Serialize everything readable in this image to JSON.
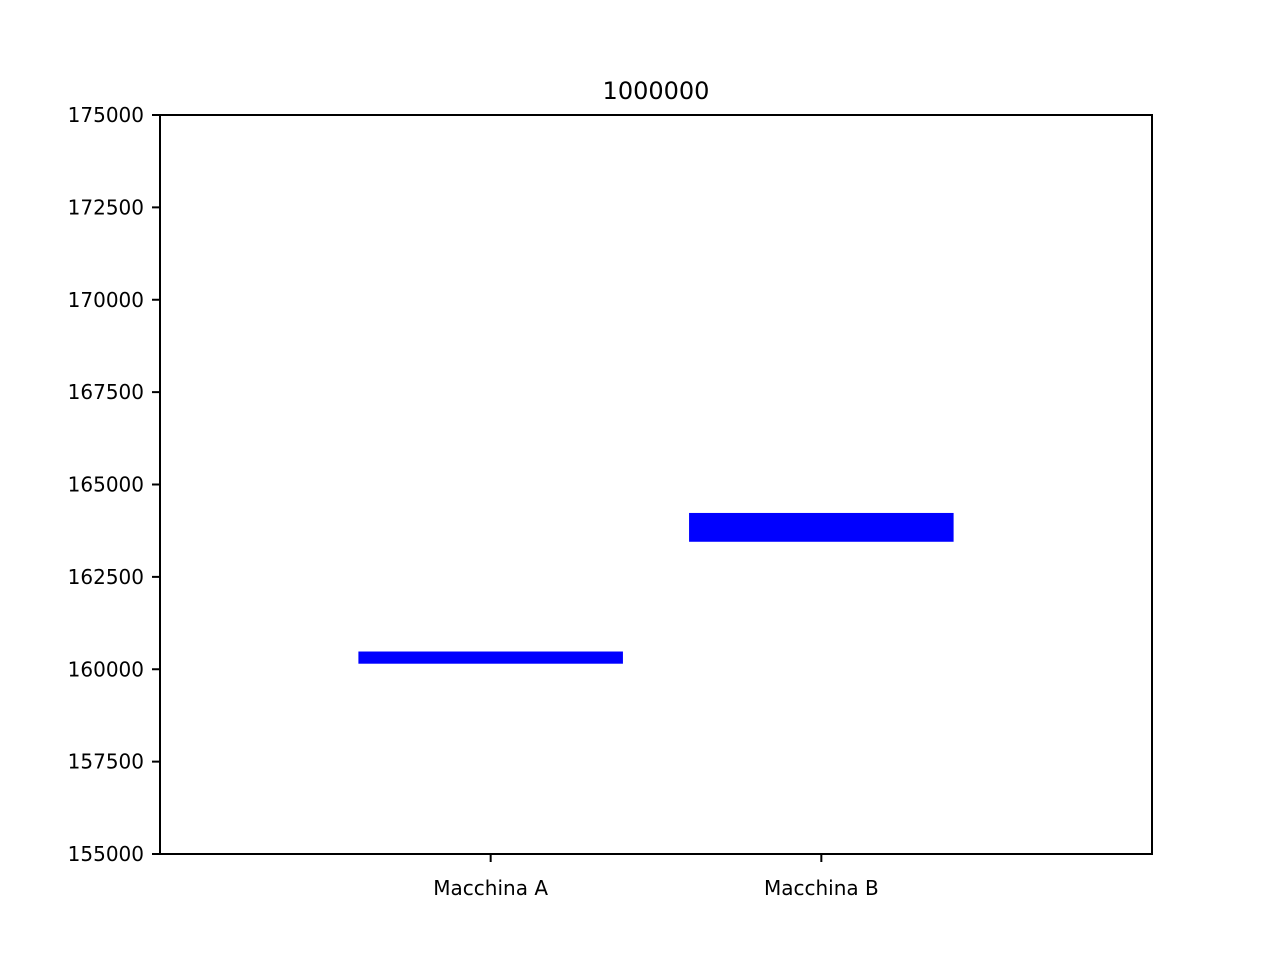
{
  "chart_data": {
    "type": "bar",
    "title": "1000000",
    "xlabel": "",
    "ylabel": "",
    "categories": [
      "Macchina A",
      "Macchina B"
    ],
    "ranges": [
      {
        "category": "Macchina A",
        "low": 160150,
        "high": 160480
      },
      {
        "category": "Macchina B",
        "low": 163450,
        "high": 164230
      }
    ],
    "ylim": [
      155000,
      175000
    ],
    "yticks": [
      155000,
      157500,
      160000,
      162500,
      165000,
      167500,
      170000,
      172500,
      175000
    ],
    "grid": false,
    "bar_color": "#0000ff"
  }
}
